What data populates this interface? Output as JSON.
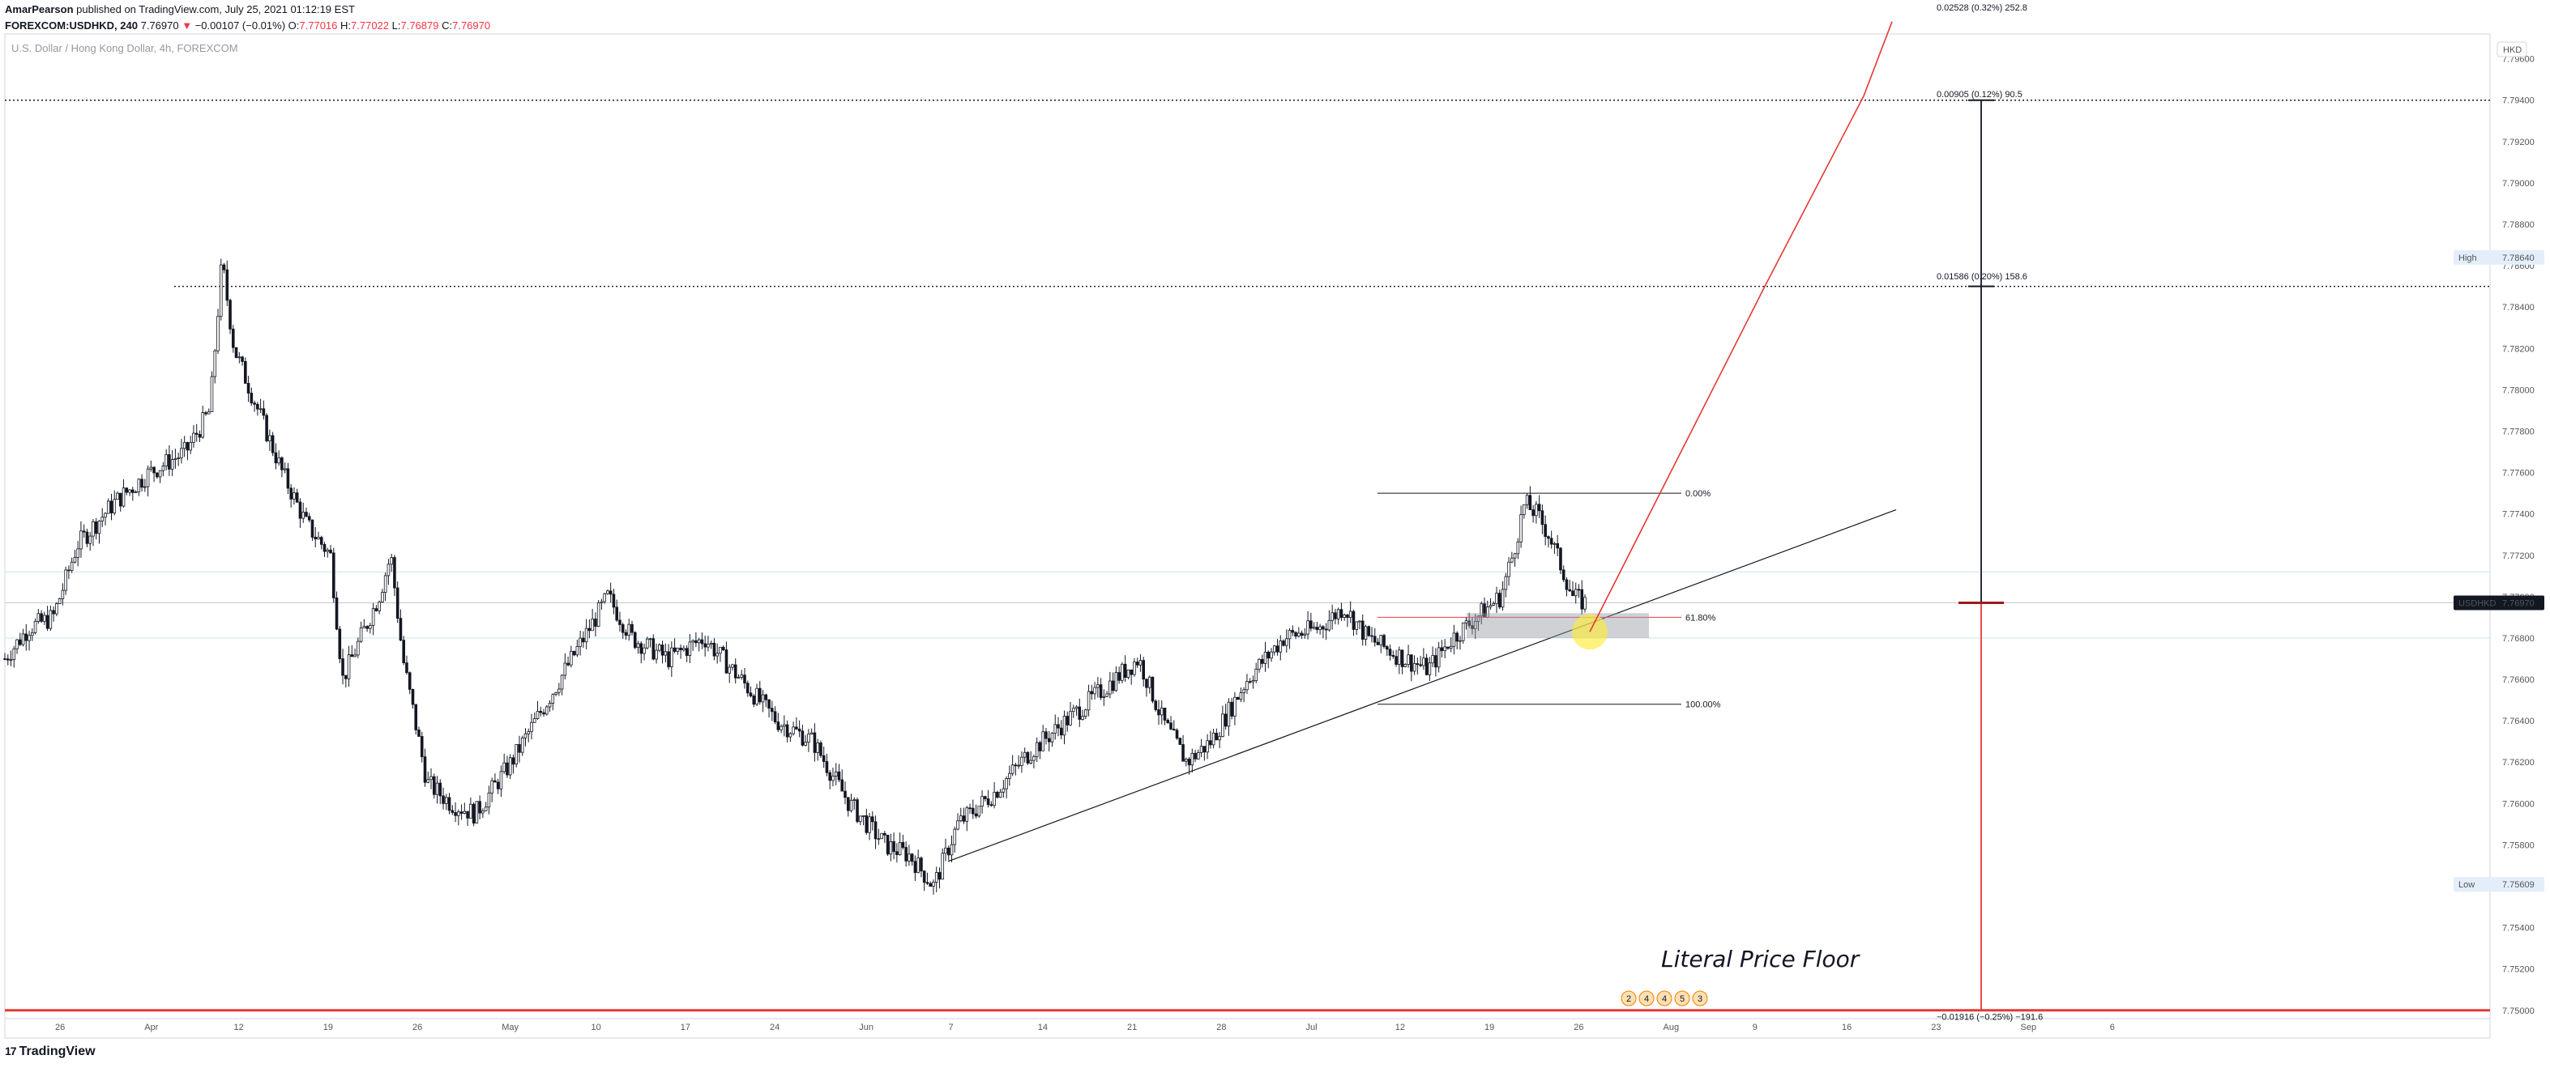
{
  "header": {
    "author": "AmarPearson",
    "published_text": "published on TradingView.com, July 25, 2021 01:12:19 EST",
    "symbol_line": "FOREXCOM:USDHKD, 240",
    "last": "7.76970",
    "change": "−0.00107 (−0.01%)",
    "o_label": "O:",
    "o": "7.77016",
    "h_label": "H:",
    "h": "7.77022",
    "l_label": "L:",
    "l": "7.76879",
    "c_label": "C:",
    "c": "7.76970"
  },
  "subtitle": "U.S. Dollar / Hong Kong Dollar, 4h, FOREXCOM",
  "currency_badge": "HKD",
  "footer": {
    "logo": "17",
    "brand": "TradingView"
  },
  "annotation_text": "Literal Price Floor",
  "price_labels": {
    "high": {
      "label": "High",
      "value": "7.78640"
    },
    "low": {
      "label": "Low",
      "value": "7.75609"
    },
    "symbol": {
      "label": "USDHKD",
      "value": "7.76970"
    }
  },
  "measure_labels": [
    {
      "text": "0.02528 (0.32%) 252.8",
      "price": 7.7985
    },
    {
      "text": "0.00905 (0.12%) 90.5",
      "price": 7.7943
    },
    {
      "text": "0.01586 (0.20%) 158.6",
      "price": 7.7855
    },
    {
      "text": "−0.01916 (−0.25%) −191.6",
      "price": 7.7497
    }
  ],
  "events": [
    "2",
    "4",
    "4",
    "5",
    "3"
  ],
  "chart_data": {
    "type": "candlestick",
    "title": "U.S. Dollar / Hong Kong Dollar, 4h, FOREXCOM",
    "symbol": "FOREXCOM:USDHKD",
    "interval": "240",
    "ylim": [
      7.7496,
      7.7972
    ],
    "y_ticks": [
      "7.79600",
      "7.79400",
      "7.79200",
      "7.79000",
      "7.78800",
      "7.78600",
      "7.78400",
      "7.78200",
      "7.78000",
      "7.77800",
      "7.77600",
      "7.77400",
      "7.77200",
      "7.77000",
      "7.76800",
      "7.76600",
      "7.76400",
      "7.76200",
      "7.76000",
      "7.75800",
      "7.75600",
      "7.75400",
      "7.75200",
      "7.75000"
    ],
    "x_ticks": [
      "26",
      "Apr",
      "12",
      "19",
      "26",
      "May",
      "10",
      "17",
      "24",
      "Jun",
      "7",
      "14",
      "21",
      "28",
      "Jul",
      "12",
      "19",
      "26",
      "Aug",
      "9",
      "16",
      "23",
      "Sep",
      "6"
    ],
    "price_path": [
      [
        0,
        7.767
      ],
      [
        0.02,
        7.7685
      ],
      [
        0.04,
        7.769
      ],
      [
        0.06,
        7.7725
      ],
      [
        0.09,
        7.7745
      ],
      [
        0.12,
        7.776
      ],
      [
        0.15,
        7.777
      ],
      [
        0.17,
        7.779
      ],
      [
        0.18,
        7.7862
      ],
      [
        0.19,
        7.782
      ],
      [
        0.21,
        7.779
      ],
      [
        0.23,
        7.776
      ],
      [
        0.25,
        7.7735
      ],
      [
        0.27,
        7.772
      ],
      [
        0.28,
        7.766
      ],
      [
        0.31,
        7.77
      ],
      [
        0.32,
        7.772
      ],
      [
        0.33,
        7.767
      ],
      [
        0.35,
        7.761
      ],
      [
        0.37,
        7.76
      ],
      [
        0.39,
        7.7595
      ],
      [
        0.42,
        7.762
      ],
      [
        0.45,
        7.765
      ],
      [
        0.48,
        7.768
      ],
      [
        0.5,
        7.77
      ],
      [
        0.52,
        7.768
      ],
      [
        0.55,
        7.767
      ],
      [
        0.58,
        7.768
      ],
      [
        0.61,
        7.766
      ],
      [
        0.64,
        7.764
      ],
      [
        0.67,
        7.763
      ],
      [
        0.7,
        7.76
      ],
      [
        0.73,
        7.758
      ],
      [
        0.75,
        7.7575
      ],
      [
        0.77,
        7.756
      ],
      [
        0.79,
        7.759
      ],
      [
        0.82,
        7.7605
      ],
      [
        0.85,
        7.7625
      ],
      [
        0.88,
        7.764
      ],
      [
        0.91,
        7.7655
      ],
      [
        0.94,
        7.767
      ],
      [
        0.96,
        7.764
      ],
      [
        0.98,
        7.762
      ],
      [
        1.0,
        7.763
      ],
      [
        1.03,
        7.766
      ],
      [
        1.06,
        7.768
      ],
      [
        1.09,
        7.7685
      ],
      [
        1.11,
        7.7695
      ],
      [
        1.13,
        7.768
      ],
      [
        1.16,
        7.767
      ],
      [
        1.18,
        7.7665
      ],
      [
        1.2,
        7.768
      ],
      [
        1.22,
        7.769
      ],
      [
        1.24,
        7.77
      ],
      [
        1.25,
        7.772
      ],
      [
        1.26,
        7.7745
      ],
      [
        1.27,
        7.774
      ],
      [
        1.28,
        7.773
      ],
      [
        1.29,
        7.7715
      ],
      [
        1.3,
        7.77
      ],
      [
        1.31,
        7.7697
      ]
    ],
    "fib": {
      "levels": [
        {
          "label": "0.00%",
          "price": 7.775
        },
        {
          "label": "61.80%",
          "price": 7.769
        },
        {
          "label": "100.00%",
          "price": 7.7648
        }
      ]
    },
    "horizontal_levels": [
      7.794,
      7.785,
      7.75
    ],
    "last_price": 7.7697,
    "high": 7.7864,
    "low": 7.75609
  }
}
